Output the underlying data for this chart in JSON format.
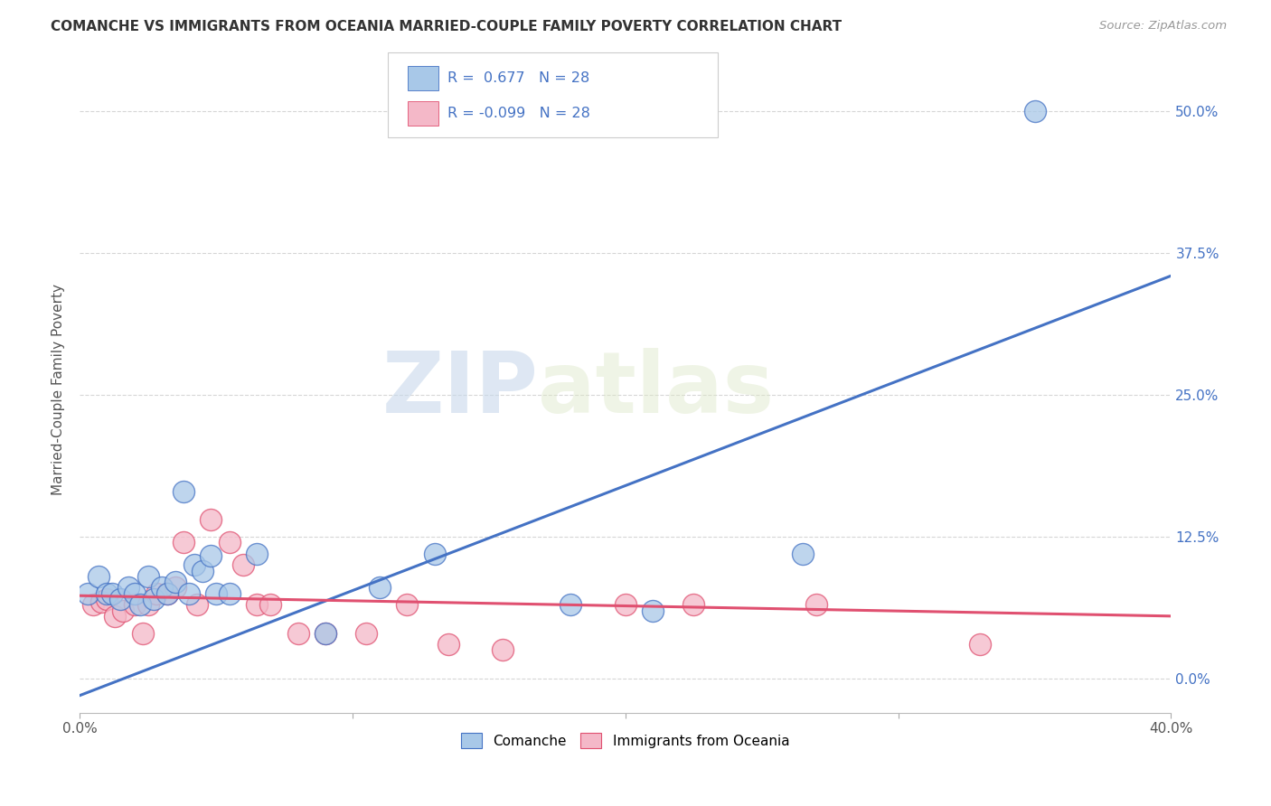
{
  "title": "COMANCHE VS IMMIGRANTS FROM OCEANIA MARRIED-COUPLE FAMILY POVERTY CORRELATION CHART",
  "source": "Source: ZipAtlas.com",
  "ylabel": "Married-Couple Family Poverty",
  "legend_label1": "Comanche",
  "legend_label2": "Immigrants from Oceania",
  "r1": 0.677,
  "r2": -0.099,
  "n1": 28,
  "n2": 28,
  "color1": "#a8c8e8",
  "color2": "#f4b8c8",
  "line_color1": "#4472c4",
  "line_color2": "#e05070",
  "watermark_zip": "ZIP",
  "watermark_atlas": "atlas",
  "comanche_x": [
    0.003,
    0.007,
    0.01,
    0.012,
    0.015,
    0.018,
    0.02,
    0.022,
    0.025,
    0.027,
    0.03,
    0.032,
    0.035,
    0.038,
    0.04,
    0.042,
    0.045,
    0.048,
    0.05,
    0.055,
    0.065,
    0.09,
    0.11,
    0.13,
    0.18,
    0.21,
    0.265,
    0.35
  ],
  "comanche_y": [
    0.075,
    0.09,
    0.075,
    0.075,
    0.07,
    0.08,
    0.075,
    0.065,
    0.09,
    0.07,
    0.08,
    0.075,
    0.085,
    0.165,
    0.075,
    0.1,
    0.095,
    0.108,
    0.075,
    0.075,
    0.11,
    0.04,
    0.08,
    0.11,
    0.065,
    0.06,
    0.11,
    0.5
  ],
  "oceania_x": [
    0.005,
    0.008,
    0.01,
    0.013,
    0.016,
    0.02,
    0.023,
    0.025,
    0.028,
    0.032,
    0.035,
    0.038,
    0.043,
    0.048,
    0.055,
    0.06,
    0.065,
    0.07,
    0.08,
    0.09,
    0.105,
    0.12,
    0.135,
    0.155,
    0.2,
    0.225,
    0.27,
    0.33
  ],
  "oceania_y": [
    0.065,
    0.068,
    0.07,
    0.055,
    0.06,
    0.065,
    0.04,
    0.065,
    0.075,
    0.075,
    0.08,
    0.12,
    0.065,
    0.14,
    0.12,
    0.1,
    0.065,
    0.065,
    0.04,
    0.04,
    0.04,
    0.065,
    0.03,
    0.025,
    0.065,
    0.065,
    0.065,
    0.03
  ],
  "blue_line_x0": 0.0,
  "blue_line_y0": -0.015,
  "blue_line_x1": 0.4,
  "blue_line_y1": 0.355,
  "pink_line_x0": 0.0,
  "pink_line_y0": 0.073,
  "pink_line_x1": 0.4,
  "pink_line_y1": 0.055,
  "xmin": 0.0,
  "xmax": 0.4,
  "ymin": -0.03,
  "ymax": 0.54,
  "xticks": [
    0.0,
    0.1,
    0.2,
    0.3,
    0.4
  ],
  "xticklabels": [
    "0.0%",
    "",
    "",
    "",
    "40.0%"
  ],
  "yticks": [
    0.0,
    0.125,
    0.25,
    0.375,
    0.5
  ],
  "yticklabels_right": [
    "0.0%",
    "12.5%",
    "25.0%",
    "37.5%",
    "50.0%"
  ],
  "background_color": "#ffffff",
  "grid_color": "#cccccc",
  "title_color": "#333333",
  "source_color": "#999999",
  "axis_label_color": "#555555",
  "right_tick_color": "#4472c4"
}
